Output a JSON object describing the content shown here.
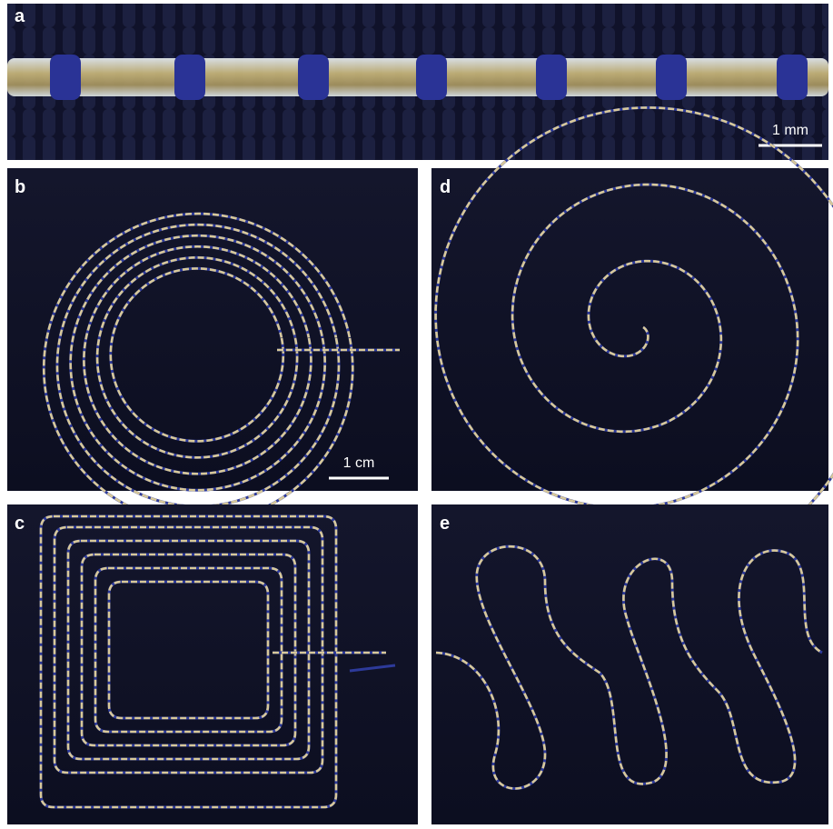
{
  "panels": [
    {
      "label": "a",
      "scale_bar": "1 mm"
    },
    {
      "label": "b",
      "scale_bar": "1 cm"
    },
    {
      "label": "d"
    },
    {
      "label": "c"
    },
    {
      "label": "e"
    }
  ]
}
